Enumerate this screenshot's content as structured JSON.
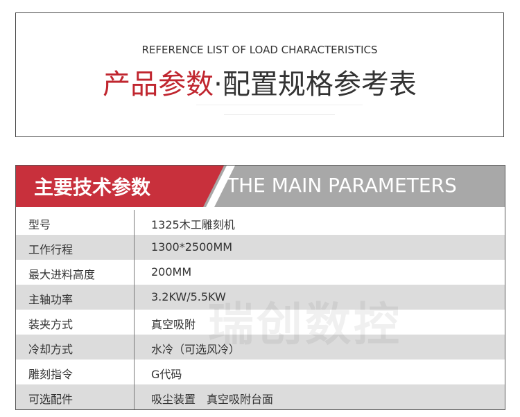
{
  "header": {
    "subtitle": "REFERENCE LIST OF LOAD CHARACTERISTICS",
    "title_red": "产品参数",
    "title_rest": "·配置规格参考表"
  },
  "table": {
    "title_cn": "主要技术参数",
    "title_en": "THE MAIN PARAMETERS",
    "rows": [
      [
        "型号",
        "1325木工雕刻机"
      ],
      [
        "工作行程",
        "1300*2500MM"
      ],
      [
        "最大进料高度",
        "200MM"
      ],
      [
        "主轴功率",
        "3.2KW/5.5KW"
      ],
      [
        "装夹方式",
        "真空吸附"
      ],
      [
        "冷却方式",
        "水冷（可选风冷）"
      ],
      [
        "雕刻指令",
        "G代码"
      ],
      [
        "可选配件",
        "吸尘装置　真空吸附台面"
      ]
    ]
  },
  "watermark": "瑞创数控"
}
